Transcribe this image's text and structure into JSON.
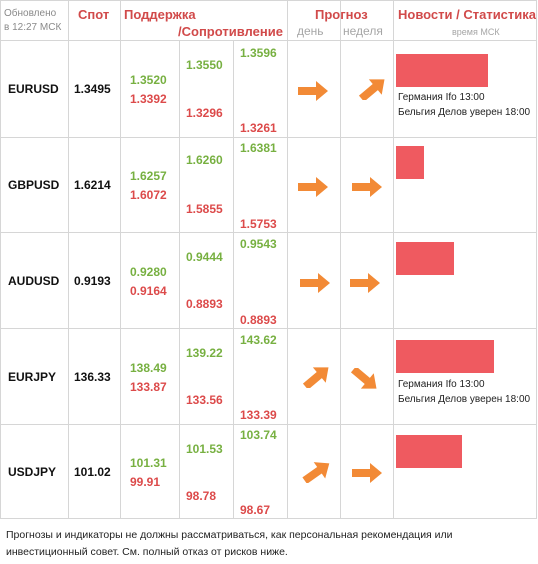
{
  "header": {
    "updated_line1": "Обновлено",
    "updated_line2": "в 12:27 МСК",
    "spot": "Спот",
    "support": "Поддержка",
    "resistance": "/Сопротивление",
    "forecast": "Прогноз",
    "forecast_day": "день",
    "forecast_week": "неделя",
    "news": "Новости / Статистика",
    "news_sub": "время МСК"
  },
  "colors": {
    "header_red": "#d14a4a",
    "support_green": "#77b041",
    "resistance_red": "#dc4a4a",
    "arrow_orange": "#f28a36",
    "news_bar": "#ef5a60"
  },
  "rows": [
    {
      "pair": "EURUSD",
      "spot": "1.3495",
      "col1": {
        "green": "1.3520",
        "red": "1.3392"
      },
      "col2": {
        "green": "1.3550",
        "red": "1.3296"
      },
      "col3": {
        "green": "1.3596",
        "red": "1.3261"
      },
      "day_arrow": "arrow-right-icon",
      "week_arrow": "arrow-up-right-icon",
      "news_level": 0.71,
      "news": [
        "Германия Ifo 13:00",
        "Бельгия Делов уверен 18:00"
      ]
    },
    {
      "pair": "GBPUSD",
      "spot": "1.6214",
      "col1": {
        "green": "1.6257",
        "red": "1.6072"
      },
      "col2": {
        "green": "1.6260",
        "red": "1.5855"
      },
      "col3": {
        "green": "1.6381",
        "red": "1.5753"
      },
      "day_arrow": "arrow-right-icon",
      "week_arrow": "arrow-right-icon",
      "news_level": 0.22,
      "news": []
    },
    {
      "pair": "AUDUSD",
      "spot": "0.9193",
      "col1": {
        "green": "0.9280",
        "red": "0.9164"
      },
      "col2": {
        "green": "0.9444",
        "red": "0.8893"
      },
      "col3": {
        "green": "0.9543",
        "red": "0.8893"
      },
      "day_arrow": "arrow-right-icon",
      "week_arrow": "arrow-right-icon",
      "news_level": 0.46,
      "news": []
    },
    {
      "pair": "EURJPY",
      "spot": "136.33",
      "col1": {
        "green": "138.49",
        "red": "133.87"
      },
      "col2": {
        "green": "139.22",
        "red": "133.56"
      },
      "col3": {
        "green": "143.62",
        "red": "133.39"
      },
      "day_arrow": "arrow-up-right-icon",
      "week_arrow": "arrow-down-right-icon",
      "news_level": 0.77,
      "news": [
        "Германия Ifo 13:00",
        "Бельгия Делов уверен 18:00"
      ]
    },
    {
      "pair": "USDJPY",
      "spot": "101.02",
      "col1": {
        "green": "101.31",
        "red": "99.91"
      },
      "col2": {
        "green": "101.53",
        "red": "98.78"
      },
      "col3": {
        "green": "103.74",
        "red": "98.67"
      },
      "day_arrow": "arrow-up-right-icon",
      "week_arrow": "arrow-right-icon",
      "news_level": 0.52,
      "news": []
    }
  ],
  "disclaimer": "Прогнозы и индикаторы не должны рассматриваться, как персональная рекомендация или инвестиционный совет. См. полный отказ от рисков ниже."
}
